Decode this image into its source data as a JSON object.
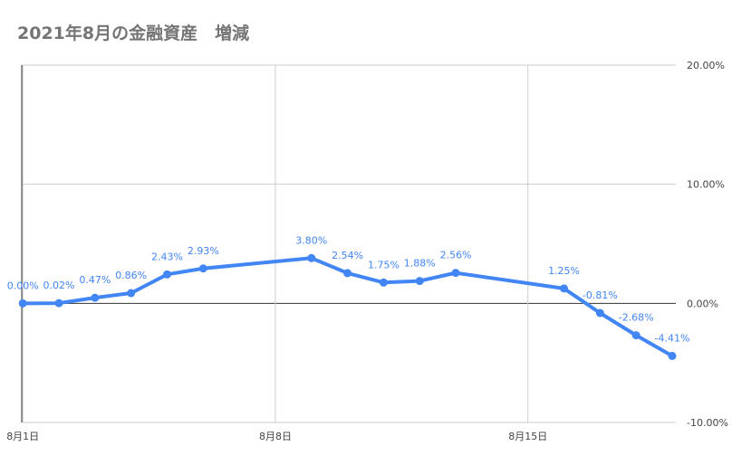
{
  "chart_data": {
    "type": "line",
    "title": "2021年8月の金融資産　増減",
    "xlabel": "",
    "ylabel": "",
    "x_ticks": [
      {
        "label": "8月1日",
        "day": 1
      },
      {
        "label": "8月8日",
        "day": 8
      },
      {
        "label": "8月15日",
        "day": 15
      }
    ],
    "y_ticks": [
      "20.00%",
      "10.00%",
      "0.00%",
      "-10.00%"
    ],
    "ylim": [
      -10,
      20
    ],
    "xlim_days": [
      0.97,
      19.1
    ],
    "grid": true,
    "y_axis_side": "right",
    "series": [
      {
        "color": "#4285f4",
        "points": [
          {
            "day": 1,
            "value": 0.0,
            "label": "0.00%"
          },
          {
            "day": 2,
            "value": 0.02,
            "label": "0.02%"
          },
          {
            "day": 3,
            "value": 0.47,
            "label": "0.47%"
          },
          {
            "day": 4,
            "value": 0.86,
            "label": "0.86%"
          },
          {
            "day": 5,
            "value": 2.43,
            "label": "2.43%"
          },
          {
            "day": 6,
            "value": 2.93,
            "label": "2.93%"
          },
          {
            "day": 9,
            "value": 3.8,
            "label": "3.80%"
          },
          {
            "day": 10,
            "value": 2.54,
            "label": "2.54%"
          },
          {
            "day": 11,
            "value": 1.75,
            "label": "1.75%"
          },
          {
            "day": 12,
            "value": 1.88,
            "label": "1.88%"
          },
          {
            "day": 13,
            "value": 2.56,
            "label": "2.56%"
          },
          {
            "day": 16,
            "value": 1.25,
            "label": "1.25%"
          },
          {
            "day": 17,
            "value": -0.81,
            "label": "-0.81%"
          },
          {
            "day": 18,
            "value": -2.68,
            "label": "-2.68%"
          },
          {
            "day": 19,
            "value": -4.41,
            "label": "-4.41%"
          }
        ]
      }
    ]
  }
}
